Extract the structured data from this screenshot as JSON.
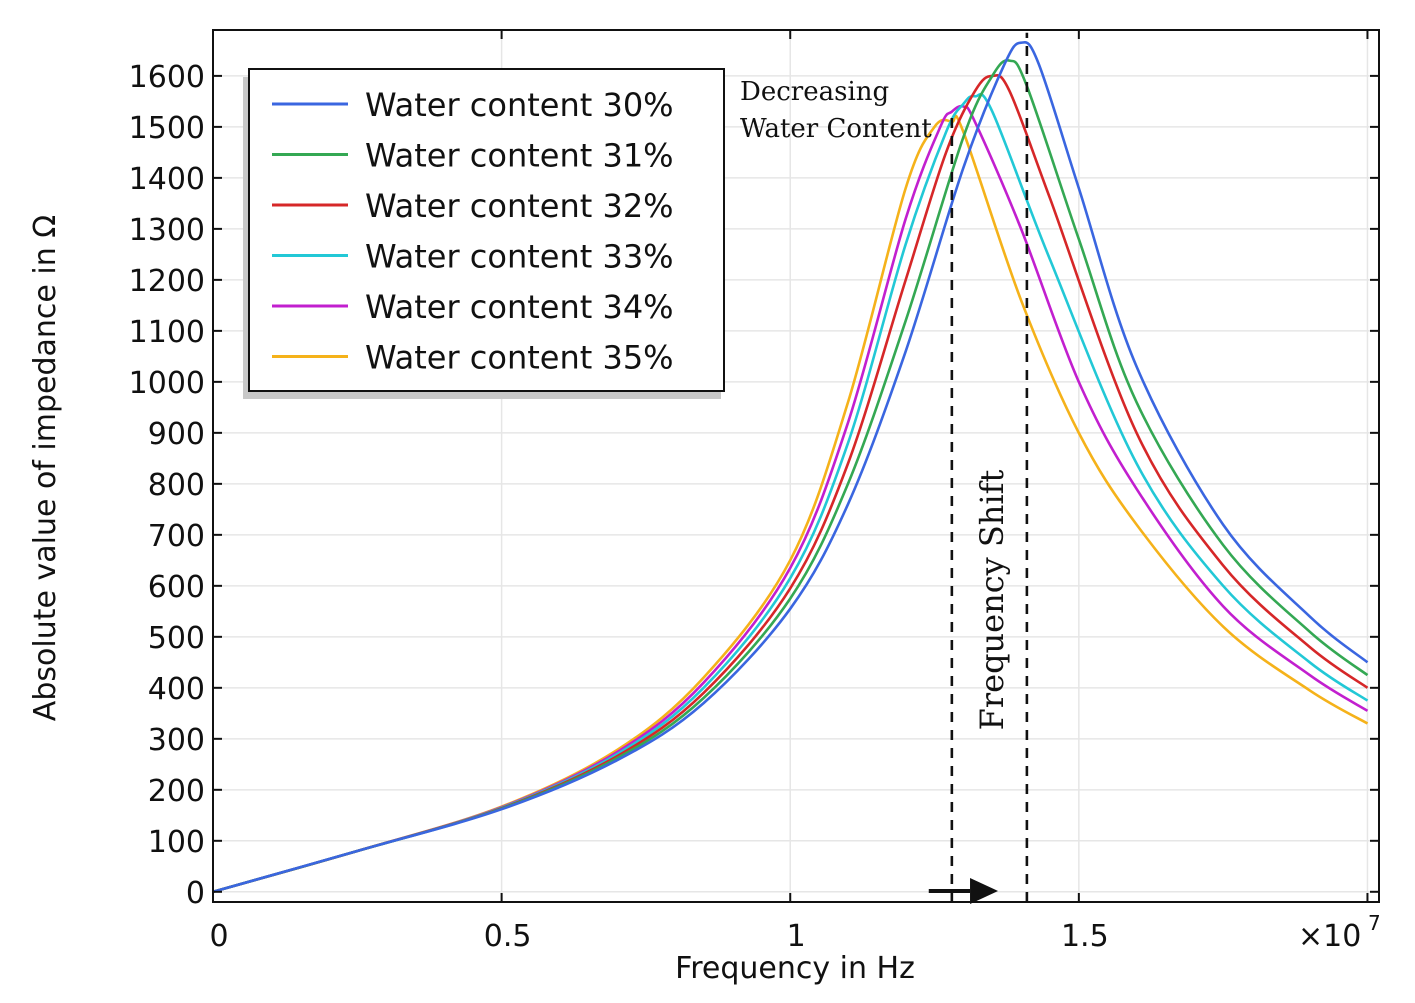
{
  "chart_data": {
    "type": "line",
    "xlabel": "Frequency in Hz",
    "ylabel": "Absolute value of impedance in Ω",
    "x_multiplier_label": "×10",
    "x_multiplier_exponent": "7",
    "xlim": [
      0,
      2.02
    ],
    "ylim": [
      -20,
      1690
    ],
    "x_ticks": [
      0,
      0.5,
      1,
      1.5,
      2
    ],
    "x_tick_labels": [
      "0",
      "0.5",
      "1",
      "1.5",
      ""
    ],
    "y_ticks": [
      0,
      100,
      200,
      300,
      400,
      500,
      600,
      700,
      800,
      900,
      1000,
      1100,
      1200,
      1300,
      1400,
      1500,
      1600
    ],
    "y_tick_labels": [
      "0",
      "100",
      "200",
      "300",
      "400",
      "500",
      "600",
      "700",
      "800",
      "900",
      "1000",
      "1100",
      "1200",
      "1300",
      "1400",
      "1500",
      "1600"
    ],
    "grid": true,
    "legend_position": "top-left",
    "series": [
      {
        "name": "Water content 30%",
        "color": "#3a66e0",
        "x": [
          0,
          0.25,
          0.5,
          0.7,
          0.85,
          1.0,
          1.1,
          1.2,
          1.3,
          1.37,
          1.4,
          1.43,
          1.5,
          1.6,
          1.75,
          1.9,
          2.0
        ],
        "values": [
          0,
          80,
          162,
          258,
          370,
          555,
          760,
          1060,
          1420,
          1620,
          1665,
          1625,
          1380,
          1030,
          720,
          540,
          450
        ]
      },
      {
        "name": "Water content 31%",
        "color": "#34a853",
        "x": [
          0,
          0.25,
          0.5,
          0.7,
          0.85,
          1.0,
          1.1,
          1.2,
          1.3,
          1.35,
          1.38,
          1.41,
          1.5,
          1.6,
          1.75,
          1.9,
          2.0
        ],
        "values": [
          0,
          80,
          163,
          262,
          380,
          575,
          800,
          1120,
          1480,
          1600,
          1630,
          1580,
          1280,
          960,
          680,
          510,
          425
        ]
      },
      {
        "name": "Water content 32%",
        "color": "#d62728",
        "x": [
          0,
          0.25,
          0.5,
          0.7,
          0.85,
          1.0,
          1.1,
          1.2,
          1.27,
          1.32,
          1.35,
          1.38,
          1.45,
          1.6,
          1.75,
          1.9,
          2.0
        ],
        "values": [
          0,
          80,
          164,
          266,
          390,
          595,
          840,
          1200,
          1450,
          1570,
          1600,
          1570,
          1360,
          900,
          640,
          480,
          400
        ]
      },
      {
        "name": "Water content 33%",
        "color": "#22c8d6",
        "x": [
          0,
          0.25,
          0.5,
          0.7,
          0.85,
          1.0,
          1.1,
          1.2,
          1.27,
          1.3,
          1.32,
          1.35,
          1.45,
          1.6,
          1.75,
          1.9,
          2.0
        ],
        "values": [
          0,
          80,
          165,
          270,
          400,
          615,
          880,
          1270,
          1490,
          1545,
          1560,
          1530,
          1240,
          840,
          600,
          450,
          375
        ]
      },
      {
        "name": "Water content 34%",
        "color": "#c21fcf",
        "x": [
          0,
          0.25,
          0.5,
          0.7,
          0.85,
          1.0,
          1.1,
          1.2,
          1.26,
          1.28,
          1.3,
          1.32,
          1.4,
          1.5,
          1.6,
          1.75,
          1.9,
          2.0
        ],
        "values": [
          0,
          80,
          166,
          274,
          410,
          635,
          920,
          1320,
          1500,
          1530,
          1540,
          1510,
          1300,
          1000,
          790,
          560,
          425,
          355
        ]
      },
      {
        "name": "Water content 35%",
        "color": "#f5b21a",
        "x": [
          0,
          0.25,
          0.5,
          0.7,
          0.85,
          1.0,
          1.1,
          1.2,
          1.25,
          1.28,
          1.3,
          1.4,
          1.5,
          1.6,
          1.75,
          1.9,
          2.0
        ],
        "values": [
          0,
          80,
          167,
          278,
          420,
          650,
          960,
          1380,
          1500,
          1510,
          1490,
          1160,
          900,
          720,
          520,
          395,
          330
        ]
      }
    ],
    "annotations": {
      "arrow_text_line1": "Decreasing",
      "arrow_text_line2": "Water Content",
      "shift_text": "Frequency Shift",
      "shift_lines_x": [
        1.28,
        1.41
      ],
      "arrow_from": [
        1.24,
        1.53
      ],
      "arrow_to": [
        1.36,
        1.66
      ]
    }
  }
}
